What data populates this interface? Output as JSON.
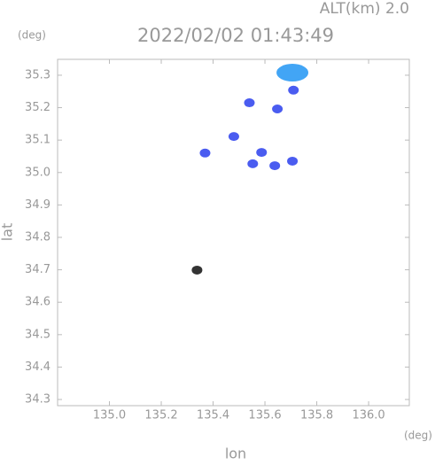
{
  "chart_data": {
    "type": "scatter",
    "header": "ALT(km) 2.0",
    "y_unit": "(deg)",
    "title": "2022/02/02 01:43:49",
    "ylabel": "lat",
    "xlabel": "lon",
    "x_unit": "(deg)",
    "x": [
      135.706,
      135.71,
      135.54,
      135.648,
      135.48,
      135.369,
      135.587,
      135.553,
      135.706,
      135.638,
      135.338
    ],
    "y": [
      35.308,
      35.254,
      35.215,
      35.196,
      35.111,
      35.06,
      35.062,
      35.027,
      35.035,
      35.021,
      34.699
    ],
    "colors": [
      "#42a5f5",
      "#4a5cf0",
      "#4a5cf0",
      "#4a5cf0",
      "#4a5cf0",
      "#4a5cf0",
      "#4a5cf0",
      "#4a5cf0",
      "#4a5cf0",
      "#4a5cf0",
      "#333333"
    ],
    "xlim": [
      134.8,
      136.157
    ],
    "ylim": [
      34.281,
      35.349
    ],
    "xticks": [
      {
        "value": 135.0,
        "label": "135.0"
      },
      135.2,
      135.4,
      135.6,
      135.8,
      {
        "value": 136.0,
        "label": "136.0"
      }
    ],
    "yticks": [
      34.3,
      34.4,
      34.5,
      34.6,
      34.7,
      34.8,
      34.9,
      {
        "value": 35.0,
        "label": "35.0"
      },
      35.1,
      35.2,
      35.3
    ]
  }
}
